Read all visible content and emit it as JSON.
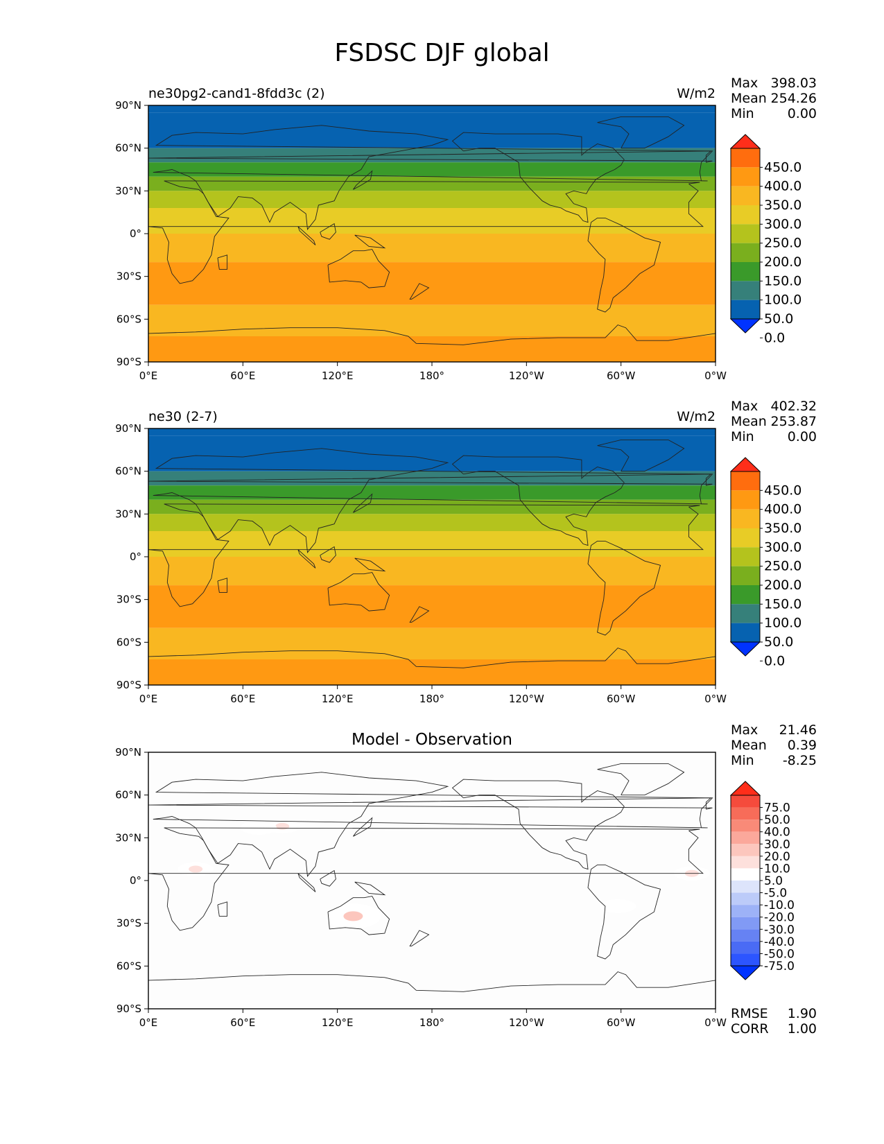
{
  "figure_title": "FSDSC DJF global",
  "panels": [
    {
      "name": "test",
      "left_title": "ne30pg2-cand1-8fdd3c (2)",
      "center_title": "",
      "units": "W/m2",
      "stats": {
        "max_label": "Max",
        "max": "398.03",
        "mean_label": "Mean",
        "mean": "254.26",
        "min_label": "Min",
        "min": "0.00"
      },
      "colorbar_labels": [
        "450.0",
        "400.0",
        "350.0",
        "300.0",
        "250.0",
        "200.0",
        "150.0",
        "100.0",
        "50.0",
        "0.0"
      ],
      "colorbar_colors": [
        "#0033ff",
        "#0662b0",
        "#36807a",
        "#3a9a2a",
        "#7aaf1e",
        "#b4c31d",
        "#e8cc26",
        "#f9b721",
        "#ff9912",
        "#ff6d0e",
        "#ff2e1a"
      ]
    },
    {
      "name": "reference",
      "left_title": "ne30 (2-7)",
      "center_title": "",
      "units": "W/m2",
      "stats": {
        "max_label": "Max",
        "max": "402.32",
        "mean_label": "Mean",
        "mean": "253.87",
        "min_label": "Min",
        "min": "0.00"
      },
      "colorbar_labels": [
        "450.0",
        "400.0",
        "350.0",
        "300.0",
        "250.0",
        "200.0",
        "150.0",
        "100.0",
        "50.0",
        "0.0"
      ],
      "colorbar_colors": [
        "#0033ff",
        "#0662b0",
        "#36807a",
        "#3a9a2a",
        "#7aaf1e",
        "#b4c31d",
        "#e8cc26",
        "#f9b721",
        "#ff9912",
        "#ff6d0e",
        "#ff2e1a"
      ]
    },
    {
      "name": "difference",
      "left_title": "",
      "center_title": "Model - Observation",
      "units": "",
      "stats": {
        "max_label": "Max",
        "max": "21.46",
        "mean_label": "Mean",
        "mean": "0.39",
        "min_label": "Min",
        "min": "-8.25"
      },
      "colorbar_labels": [
        "75.0",
        "50.0",
        "40.0",
        "30.0",
        "20.0",
        "10.0",
        "5.0",
        "-5.0",
        "-10.0",
        "-20.0",
        "-30.0",
        "-40.0",
        "-50.0",
        "-75.0"
      ],
      "colorbar_colors": [
        "#0033ff",
        "#2c55ff",
        "#4a6bf5",
        "#6682f3",
        "#819af5",
        "#9db2f7",
        "#bccbf9",
        "#dde4fb",
        "#ffffff",
        "#fde0dc",
        "#fcc6bd",
        "#fba89b",
        "#f98a78",
        "#f76c59",
        "#f54b3c",
        "#ff2e1a"
      ],
      "footer": {
        "rmse_label": "RMSE",
        "rmse": "1.90",
        "corr_label": "CORR",
        "corr": "1.00"
      }
    }
  ],
  "lat_ticks": [
    "90°N",
    "60°N",
    "30°N",
    "0°",
    "30°S",
    "60°S",
    "90°S"
  ],
  "lon_ticks": [
    "0°E",
    "60°E",
    "120°E",
    "180°",
    "120°W",
    "60°W",
    "0°W"
  ],
  "chart_data": [
    {
      "type": "heatmap",
      "title": "ne30pg2-cand1-8fdd3c (2)",
      "units": "W/m2",
      "levels": [
        0,
        50,
        100,
        150,
        200,
        250,
        300,
        350,
        400,
        450
      ],
      "zonal_mean_bands": [
        {
          "lat": [
            85,
            90
          ],
          "value": 0
        },
        {
          "lat": [
            60,
            85
          ],
          "value": 25
        },
        {
          "lat": [
            50,
            60
          ],
          "value": 75
        },
        {
          "lat": [
            40,
            50
          ],
          "value": 125
        },
        {
          "lat": [
            30,
            40
          ],
          "value": 175
        },
        {
          "lat": [
            18,
            30
          ],
          "value": 225
        },
        {
          "lat": [
            0,
            18
          ],
          "value": 275
        },
        {
          "lat": [
            -20,
            0
          ],
          "value": 325
        },
        {
          "lat": [
            -50,
            -20
          ],
          "value": 375
        },
        {
          "lat": [
            -72,
            -50
          ],
          "value": 325
        },
        {
          "lat": [
            -90,
            -72
          ],
          "value": 375
        }
      ],
      "stats": {
        "max": 398.03,
        "mean": 254.26,
        "min": 0.0
      }
    },
    {
      "type": "heatmap",
      "title": "ne30 (2-7)",
      "units": "W/m2",
      "levels": [
        0,
        50,
        100,
        150,
        200,
        250,
        300,
        350,
        400,
        450
      ],
      "zonal_mean_bands": [
        {
          "lat": [
            85,
            90
          ],
          "value": 0
        },
        {
          "lat": [
            60,
            85
          ],
          "value": 25
        },
        {
          "lat": [
            50,
            60
          ],
          "value": 75
        },
        {
          "lat": [
            40,
            50
          ],
          "value": 125
        },
        {
          "lat": [
            30,
            40
          ],
          "value": 175
        },
        {
          "lat": [
            18,
            30
          ],
          "value": 225
        },
        {
          "lat": [
            0,
            18
          ],
          "value": 275
        },
        {
          "lat": [
            -20,
            0
          ],
          "value": 325
        },
        {
          "lat": [
            -50,
            -20
          ],
          "value": 375
        },
        {
          "lat": [
            -72,
            -50
          ],
          "value": 325
        },
        {
          "lat": [
            -90,
            -72
          ],
          "value": 375
        }
      ],
      "stats": {
        "max": 402.32,
        "mean": 253.87,
        "min": 0.0
      }
    },
    {
      "type": "heatmap",
      "title": "Model - Observation",
      "levels": [
        -75,
        -50,
        -40,
        -30,
        -20,
        -10,
        -5,
        5,
        10,
        20,
        30,
        40,
        50,
        75
      ],
      "anomalies": [
        {
          "lon": 85,
          "lat": 38,
          "value": 10
        },
        {
          "lon": 30,
          "lat": 8,
          "value": 10
        },
        {
          "lon": 130,
          "lat": -25,
          "value": 20
        },
        {
          "lon": 345,
          "lat": 5,
          "value": 10
        },
        {
          "lon": 70,
          "lat": 37,
          "value": 5
        },
        {
          "lon": 298,
          "lat": -18,
          "value": 5
        }
      ],
      "stats": {
        "max": 21.46,
        "mean": 0.39,
        "min": -8.25,
        "rmse": 1.9,
        "corr": 1.0
      }
    }
  ]
}
